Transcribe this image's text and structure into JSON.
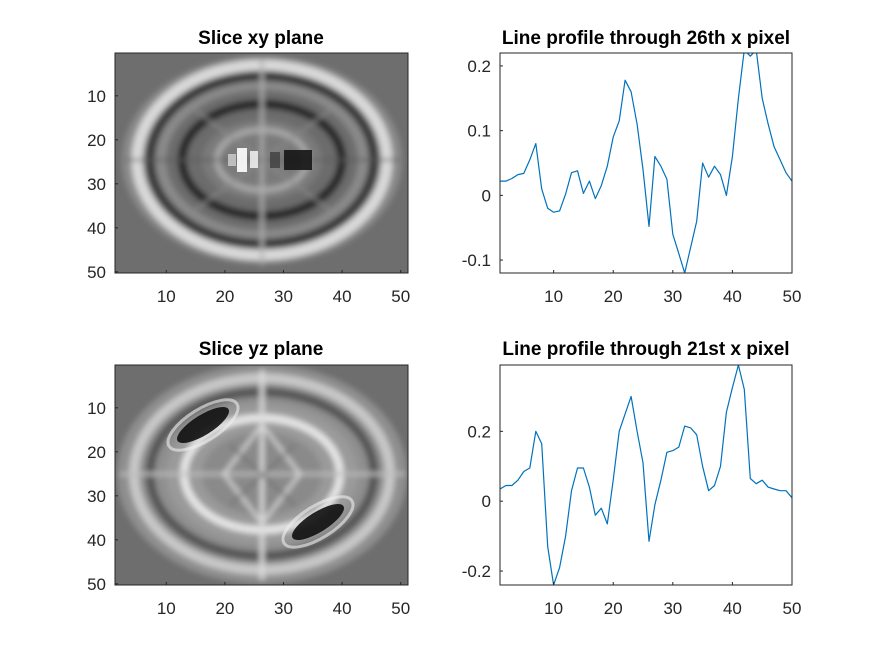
{
  "chart_data": [
    {
      "type": "heatmap",
      "title": "Slice xy plane",
      "xlabel": "",
      "ylabel": "",
      "xlim": [
        0.5,
        50.5
      ],
      "ylim": [
        50.5,
        0.5
      ],
      "x_ticks": [
        10,
        20,
        30,
        40,
        50
      ],
      "y_ticks": [
        10,
        20,
        30,
        40,
        50
      ],
      "colormap": "gray",
      "image_size": [
        50,
        50
      ],
      "visual_description": "elliptical ring pattern; bright spots near column 22-25 row 25, dark spots near column 32 row 25"
    },
    {
      "type": "line",
      "title": "Line profile through 26th x pixel",
      "xlabel": "",
      "ylabel": "",
      "xlim": [
        1,
        50
      ],
      "ylim": [
        -0.12,
        0.22
      ],
      "x_ticks": [
        10,
        20,
        30,
        40,
        50
      ],
      "y_ticks": [
        -0.1,
        0,
        0.1,
        0.2
      ],
      "y_tick_labels": [
        "-0.1",
        "0",
        "0.1",
        "0.2"
      ],
      "grid": false,
      "series": [
        {
          "color": "#0072BD",
          "x": [
            1,
            2,
            3,
            4,
            5,
            6,
            7,
            8,
            9,
            10,
            11,
            12,
            13,
            14,
            15,
            16,
            17,
            18,
            19,
            20,
            21,
            22,
            23,
            24,
            25,
            26,
            27,
            28,
            29,
            30,
            31,
            32,
            33,
            34,
            35,
            36,
            37,
            38,
            39,
            40,
            41,
            42,
            43,
            44,
            45,
            46,
            47,
            48,
            49,
            50
          ],
          "y": [
            0.022,
            0.022,
            0.026,
            0.032,
            0.034,
            0.055,
            0.08,
            0.01,
            -0.02,
            -0.026,
            -0.024,
            0.002,
            0.035,
            0.038,
            0.003,
            0.022,
            -0.005,
            0.015,
            0.045,
            0.09,
            0.115,
            0.178,
            0.16,
            0.11,
            0.04,
            -0.048,
            0.06,
            0.045,
            0.025,
            -0.06,
            -0.09,
            -0.12,
            -0.08,
            -0.04,
            0.05,
            0.028,
            0.045,
            0.032,
            0.0,
            0.06,
            0.15,
            0.225,
            0.215,
            0.225,
            0.15,
            0.11,
            0.075,
            0.055,
            0.035,
            0.022
          ]
        }
      ]
    },
    {
      "type": "heatmap",
      "title": "Slice yz plane",
      "xlabel": "",
      "ylabel": "",
      "xlim": [
        0.5,
        50.5
      ],
      "ylim": [
        50.5,
        0.5
      ],
      "x_ticks": [
        10,
        20,
        30,
        40,
        50
      ],
      "y_ticks": [
        10,
        20,
        30,
        40,
        50
      ],
      "colormap": "gray",
      "image_size": [
        50,
        50
      ],
      "visual_description": "rounded diamond ring; dark elongated spots upper-left near (15,12) and lower-right near (37,38)"
    },
    {
      "type": "line",
      "title": "Line profile through 21st x pixel",
      "xlabel": "",
      "ylabel": "",
      "xlim": [
        1,
        50
      ],
      "ylim": [
        -0.24,
        0.39
      ],
      "x_ticks": [
        10,
        20,
        30,
        40,
        50
      ],
      "y_ticks": [
        -0.2,
        0,
        0.2
      ],
      "y_tick_labels": [
        "-0.2",
        "0",
        "0.2"
      ],
      "grid": false,
      "series": [
        {
          "color": "#0072BD",
          "x": [
            1,
            2,
            3,
            4,
            5,
            6,
            7,
            8,
            9,
            10,
            11,
            12,
            13,
            14,
            15,
            16,
            17,
            18,
            19,
            20,
            21,
            22,
            23,
            24,
            25,
            26,
            27,
            28,
            29,
            30,
            31,
            32,
            33,
            34,
            35,
            36,
            37,
            38,
            39,
            40,
            41,
            42,
            43,
            44,
            45,
            46,
            47,
            48,
            49,
            50
          ],
          "y": [
            0.035,
            0.045,
            0.045,
            0.06,
            0.085,
            0.095,
            0.2,
            0.165,
            -0.13,
            -0.24,
            -0.19,
            -0.1,
            0.03,
            0.095,
            0.095,
            0.04,
            -0.04,
            -0.02,
            -0.065,
            0.06,
            0.2,
            0.25,
            0.3,
            0.2,
            0.11,
            -0.115,
            -0.01,
            0.06,
            0.14,
            0.145,
            0.155,
            0.215,
            0.21,
            0.19,
            0.1,
            0.03,
            0.045,
            0.1,
            0.255,
            0.325,
            0.39,
            0.32,
            0.065,
            0.05,
            0.06,
            0.04,
            0.035,
            0.03,
            0.03,
            0.01
          ]
        }
      ]
    }
  ]
}
